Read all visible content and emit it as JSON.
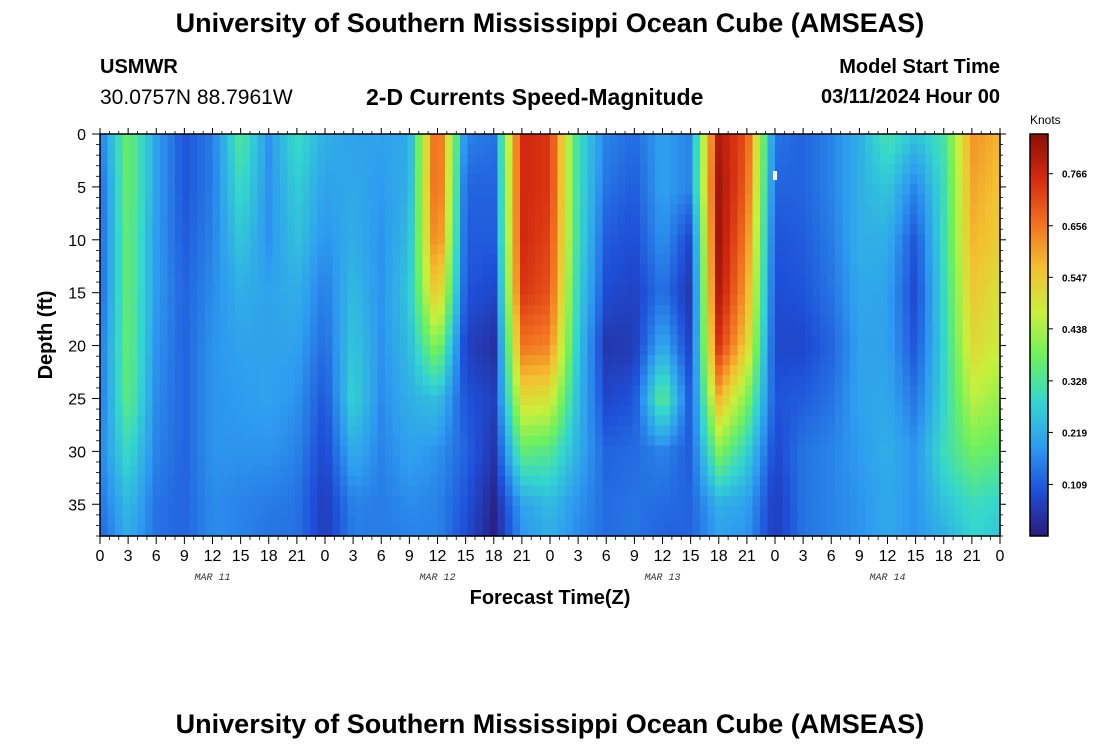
{
  "header": {
    "title": "University of Southern Mississippi Ocean Cube (AMSEAS)",
    "station": "USMWR",
    "coords": "30.0757N  88.7961W",
    "chart_title": "2-D Currents Speed-Magnitude",
    "model_start_label": "Model Start Time",
    "model_start_value": "03/11/2024 Hour 00"
  },
  "footer": {
    "title": "University of Southern Mississippi Ocean Cube (AMSEAS)"
  },
  "colors": {
    "background": "#ffffff",
    "text": "#000000",
    "colormap": [
      "#2b1a7a",
      "#1e4fd8",
      "#2e9bf0",
      "#34d6cf",
      "#6cf060",
      "#c8f03c",
      "#f4c030",
      "#f27020",
      "#d42a10",
      "#8a0f05"
    ]
  },
  "chart_data": {
    "type": "heatmap",
    "title": "2-D Currents Speed-Magnitude",
    "xlabel": "Forecast Time(Z)",
    "ylabel": "Depth (ft)",
    "x_range_hours": [
      0,
      96
    ],
    "y_range_ft": [
      0,
      38
    ],
    "y_reversed": true,
    "x_tick_hours": [
      0,
      3,
      6,
      9,
      12,
      15,
      18,
      21,
      24,
      27,
      30,
      33,
      36,
      39,
      42,
      45,
      48,
      51,
      54,
      57,
      60,
      63,
      66,
      69,
      72,
      75,
      78,
      81,
      84,
      87,
      90,
      93,
      96
    ],
    "x_tick_labels": [
      "0",
      "3",
      "6",
      "9",
      "12",
      "15",
      "18",
      "21",
      "0",
      "3",
      "6",
      "9",
      "12",
      "15",
      "18",
      "21",
      "0",
      "3",
      "6",
      "9",
      "12",
      "15",
      "18",
      "21",
      "0",
      "3",
      "6",
      "9",
      "12",
      "15",
      "18",
      "21",
      "0"
    ],
    "day_labels": [
      {
        "label": "MAR 11",
        "hour": 12
      },
      {
        "label": "MAR 12",
        "hour": 36
      },
      {
        "label": "MAR 13",
        "hour": 60
      },
      {
        "label": "MAR 14",
        "hour": 84
      }
    ],
    "y_ticks": [
      0,
      5,
      10,
      15,
      20,
      25,
      30,
      35
    ],
    "colorbar": {
      "unit": "Knots",
      "range": [
        0,
        0.85
      ],
      "ticks": [
        "0.766",
        "0.656",
        "0.547",
        "0.438",
        "0.328",
        "0.219",
        "0.109"
      ],
      "tick_values": [
        0.766,
        0.656,
        0.547,
        0.438,
        0.328,
        0.219,
        0.109
      ]
    },
    "time_hours": [
      0,
      3,
      6,
      9,
      12,
      15,
      18,
      21,
      24,
      27,
      30,
      33,
      36,
      39,
      42,
      45,
      48,
      51,
      54,
      57,
      60,
      63,
      66,
      69,
      72,
      75,
      78,
      81,
      84,
      87,
      90,
      93,
      96
    ],
    "depths_ft": [
      0,
      5,
      10,
      15,
      20,
      25,
      30,
      35,
      38
    ],
    "values": [
      [
        0.15,
        0.12,
        0.12,
        0.12,
        0.14,
        0.14,
        0.16,
        0.14,
        0.12
      ],
      [
        0.38,
        0.38,
        0.37,
        0.37,
        0.37,
        0.36,
        0.3,
        0.24,
        0.22
      ],
      [
        0.2,
        0.2,
        0.19,
        0.19,
        0.18,
        0.17,
        0.16,
        0.14,
        0.14
      ],
      [
        0.1,
        0.1,
        0.11,
        0.12,
        0.12,
        0.12,
        0.12,
        0.12,
        0.12
      ],
      [
        0.15,
        0.15,
        0.16,
        0.17,
        0.18,
        0.18,
        0.18,
        0.17,
        0.17
      ],
      [
        0.34,
        0.3,
        0.26,
        0.22,
        0.2,
        0.19,
        0.18,
        0.16,
        0.16
      ],
      [
        0.18,
        0.18,
        0.18,
        0.2,
        0.2,
        0.2,
        0.18,
        0.15,
        0.14
      ],
      [
        0.3,
        0.27,
        0.25,
        0.22,
        0.2,
        0.18,
        0.16,
        0.14,
        0.14
      ],
      [
        0.22,
        0.2,
        0.18,
        0.15,
        0.13,
        0.1,
        0.08,
        0.06,
        0.06
      ],
      [
        0.2,
        0.21,
        0.22,
        0.24,
        0.26,
        0.28,
        0.22,
        0.16,
        0.15
      ],
      [
        0.2,
        0.19,
        0.18,
        0.18,
        0.18,
        0.17,
        0.16,
        0.15,
        0.15
      ],
      [
        0.21,
        0.22,
        0.24,
        0.26,
        0.24,
        0.22,
        0.2,
        0.17,
        0.16
      ],
      [
        0.72,
        0.72,
        0.68,
        0.58,
        0.42,
        0.25,
        0.18,
        0.16,
        0.16
      ],
      [
        0.16,
        0.12,
        0.11,
        0.1,
        0.07,
        0.1,
        0.12,
        0.1,
        0.09
      ],
      [
        0.14,
        0.12,
        0.11,
        0.08,
        0.04,
        0.07,
        0.05,
        0.02,
        0.01
      ],
      [
        0.76,
        0.76,
        0.76,
        0.74,
        0.66,
        0.52,
        0.36,
        0.2,
        0.18
      ],
      [
        0.74,
        0.74,
        0.72,
        0.7,
        0.64,
        0.5,
        0.34,
        0.24,
        0.22
      ],
      [
        0.3,
        0.3,
        0.3,
        0.28,
        0.26,
        0.24,
        0.22,
        0.18,
        0.17
      ],
      [
        0.16,
        0.14,
        0.11,
        0.09,
        0.05,
        0.08,
        0.12,
        0.13,
        0.13
      ],
      [
        0.13,
        0.11,
        0.09,
        0.07,
        0.06,
        0.1,
        0.13,
        0.14,
        0.14
      ],
      [
        0.2,
        0.2,
        0.18,
        0.14,
        0.22,
        0.36,
        0.16,
        0.13,
        0.12
      ],
      [
        0.16,
        0.16,
        0.08,
        0.05,
        0.07,
        0.1,
        0.11,
        0.12,
        0.12
      ],
      [
        0.8,
        0.82,
        0.82,
        0.8,
        0.74,
        0.58,
        0.4,
        0.22,
        0.2
      ],
      [
        0.7,
        0.68,
        0.64,
        0.6,
        0.54,
        0.4,
        0.28,
        0.2,
        0.18
      ],
      [
        0.14,
        0.12,
        0.1,
        0.09,
        0.08,
        0.1,
        0.08,
        0.06,
        0.06
      ],
      [
        0.12,
        0.12,
        0.11,
        0.1,
        0.08,
        0.11,
        0.14,
        0.14,
        0.14
      ],
      [
        0.16,
        0.16,
        0.15,
        0.14,
        0.12,
        0.14,
        0.16,
        0.16,
        0.16
      ],
      [
        0.22,
        0.22,
        0.22,
        0.21,
        0.2,
        0.2,
        0.19,
        0.18,
        0.18
      ],
      [
        0.32,
        0.26,
        0.22,
        0.2,
        0.2,
        0.21,
        0.22,
        0.21,
        0.21
      ],
      [
        0.25,
        0.16,
        0.1,
        0.08,
        0.1,
        0.14,
        0.18,
        0.18,
        0.18
      ],
      [
        0.32,
        0.3,
        0.3,
        0.29,
        0.28,
        0.28,
        0.3,
        0.25,
        0.22
      ],
      [
        0.62,
        0.6,
        0.58,
        0.55,
        0.52,
        0.46,
        0.38,
        0.3,
        0.28
      ],
      [
        0.58,
        0.56,
        0.54,
        0.5,
        0.48,
        0.42,
        0.36,
        0.28,
        0.26
      ]
    ],
    "marker": {
      "hour": 72,
      "depth_ft": 3.5
    }
  }
}
